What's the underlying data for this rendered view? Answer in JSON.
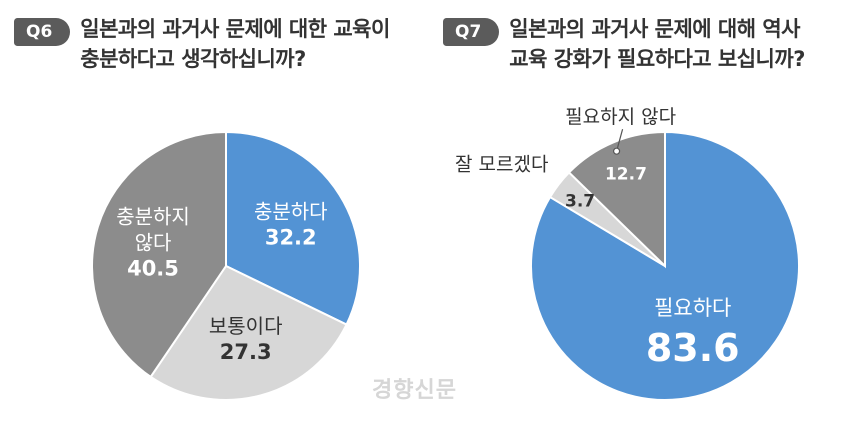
{
  "chart_data": [
    {
      "type": "pie",
      "badge": "Q6",
      "title_lines": [
        "일본과의 과거사 문제에 대한 교육이",
        "충분하다고 생각하십니까?"
      ],
      "slices": [
        {
          "label": "충분하다",
          "value": 32.2,
          "color": "#5393d4",
          "text_color": "#ffffff"
        },
        {
          "label": "보통이다",
          "value": 27.3,
          "color": "#d7d7d7",
          "text_color": "#333333"
        },
        {
          "label": "충분하지 않다",
          "label_lines": [
            "충분하지",
            "않다"
          ],
          "value": 40.5,
          "color": "#8c8c8c",
          "text_color": "#ffffff"
        }
      ]
    },
    {
      "type": "pie",
      "badge": "Q7",
      "title_lines": [
        "일본과의 과거사 문제에 대해 역사",
        "교육 강화가 필요하다고 보십니까?"
      ],
      "slices": [
        {
          "label": "필요하다",
          "value": 83.6,
          "color": "#5393d4",
          "text_color": "#ffffff"
        },
        {
          "label": "잘 모르겠다",
          "value": 3.7,
          "color": "#d7d7d7",
          "text_color": "#333333"
        },
        {
          "label": "필요하지 않다",
          "value": 12.7,
          "color": "#8c8c8c",
          "text_color": "#ffffff"
        }
      ]
    }
  ],
  "watermark": "경향신문"
}
